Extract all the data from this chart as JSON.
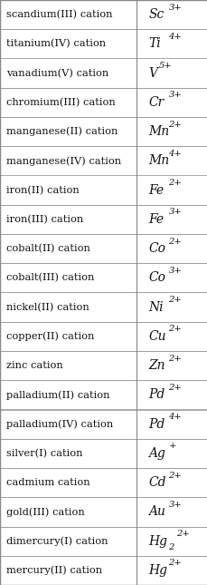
{
  "rows": [
    [
      "scandium(III) cation",
      "Sc",
      "3+",
      ""
    ],
    [
      "titanium(IV) cation",
      "Ti",
      "4+",
      ""
    ],
    [
      "vanadium(V) cation",
      "V",
      "5+",
      ""
    ],
    [
      "chromium(III) cation",
      "Cr",
      "3+",
      ""
    ],
    [
      "manganese(II) cation",
      "Mn",
      "2+",
      ""
    ],
    [
      "manganese(IV) cation",
      "Mn",
      "4+",
      ""
    ],
    [
      "iron(II) cation",
      "Fe",
      "2+",
      ""
    ],
    [
      "iron(III) cation",
      "Fe",
      "3+",
      ""
    ],
    [
      "cobalt(II) cation",
      "Co",
      "2+",
      ""
    ],
    [
      "cobalt(III) cation",
      "Co",
      "3+",
      ""
    ],
    [
      "nickel(II) cation",
      "Ni",
      "2+",
      ""
    ],
    [
      "copper(II) cation",
      "Cu",
      "2+",
      ""
    ],
    [
      "zinc cation",
      "Zn",
      "2+",
      ""
    ],
    [
      "palladium(II) cation",
      "Pd",
      "2+",
      ""
    ],
    [
      "palladium(IV) cation",
      "Pd",
      "4+",
      ""
    ],
    [
      "silver(I) cation",
      "Ag",
      "+",
      ""
    ],
    [
      "cadmium cation",
      "Cd",
      "2+",
      ""
    ],
    [
      "gold(III) cation",
      "Au",
      "3+",
      ""
    ],
    [
      "dimercury(I) cation",
      "Hg",
      "2+",
      "2"
    ],
    [
      "mercury(II) cation",
      "Hg",
      "2+",
      ""
    ]
  ],
  "bg_color": "#ffffff",
  "border_color": "#888888",
  "text_color": "#111111",
  "col_split": 0.655,
  "font_size_name": 8.2,
  "font_size_formula": 10.0,
  "font_size_script": 7.2
}
